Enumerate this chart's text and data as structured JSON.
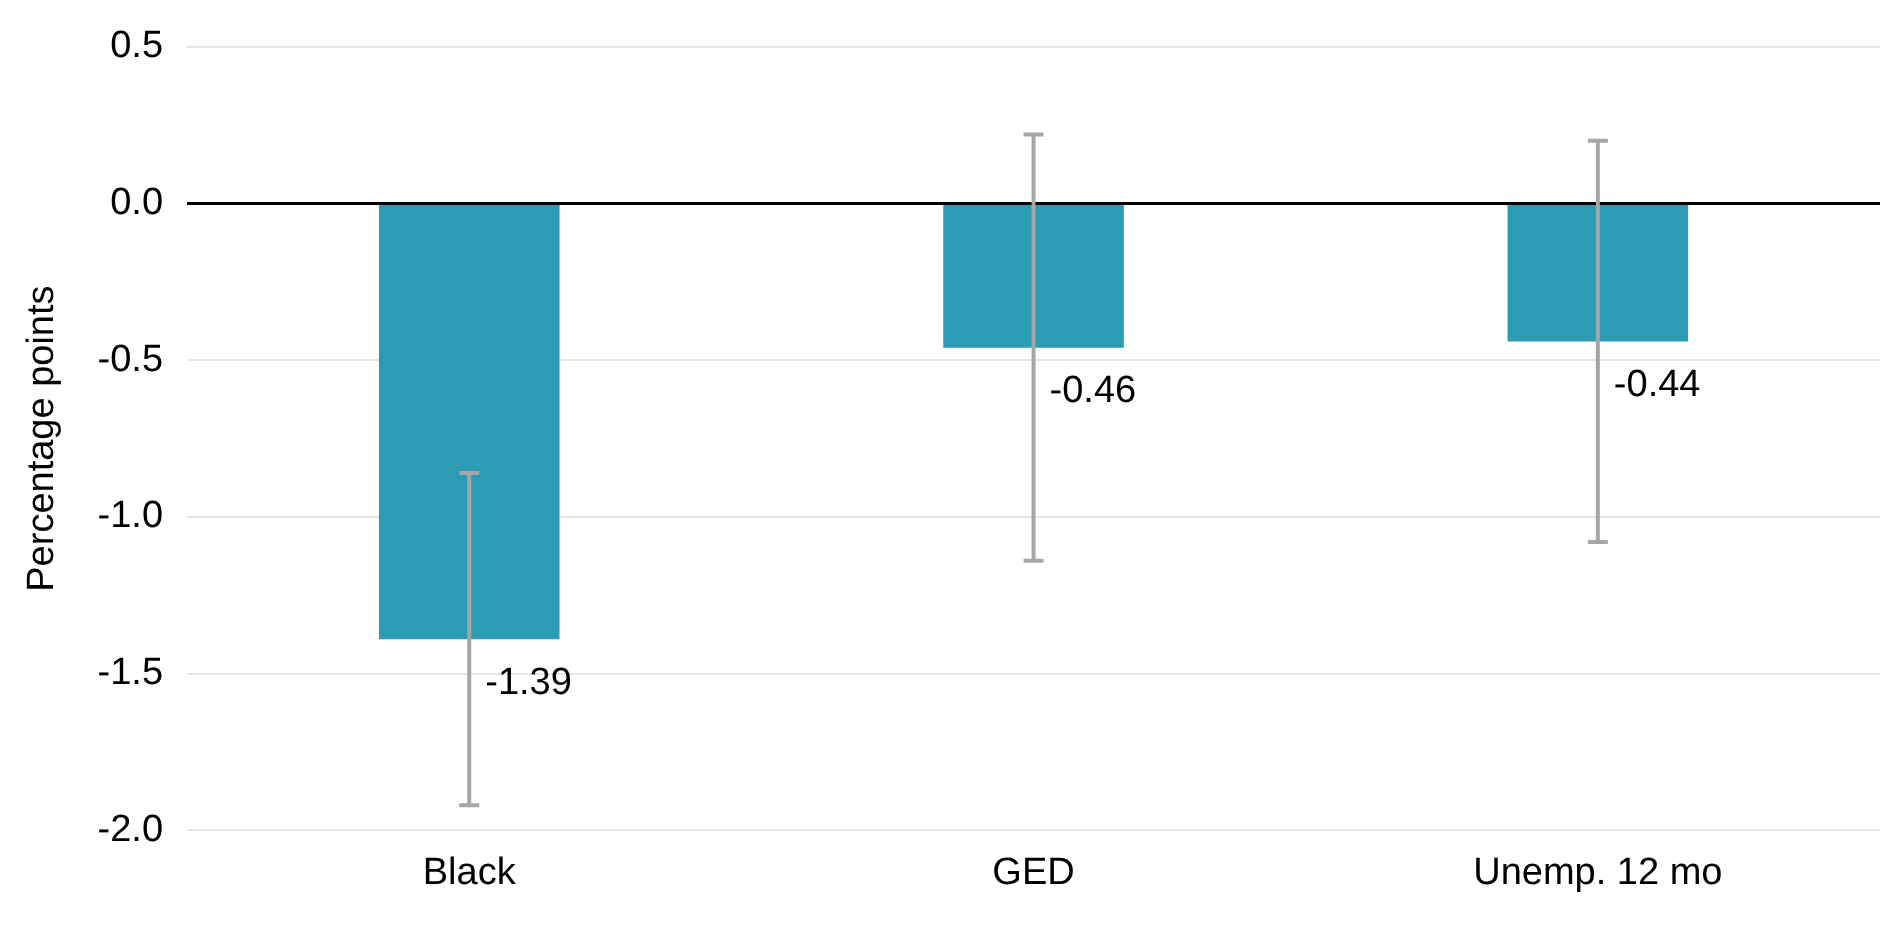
{
  "chart_data": {
    "type": "bar",
    "ylabel": "Percentage points",
    "categories": [
      "Black",
      "GED",
      "Unemp. 12 mo"
    ],
    "values": [
      -1.39,
      -0.46,
      -0.44
    ],
    "errors": [
      0.53,
      0.68,
      0.64
    ],
    "color": "#2b9cb3",
    "ylim": [
      -2.0,
      0.5
    ],
    "yticks": [
      {
        "value": -2,
        "label": "-2.0"
      },
      {
        "value": -1.5,
        "label": "-1.5"
      },
      {
        "value": -1,
        "label": "-1.0"
      },
      {
        "value": -0.5,
        "label": "-0.5"
      },
      {
        "value": 0,
        "label": "0.0"
      },
      {
        "value": 0.5,
        "label": "0.5"
      }
    ],
    "grid": "y",
    "legend": false,
    "data_labels": true
  }
}
